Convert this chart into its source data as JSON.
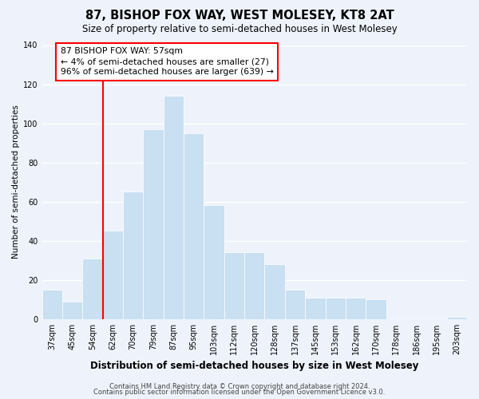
{
  "title": "87, BISHOP FOX WAY, WEST MOLESEY, KT8 2AT",
  "subtitle": "Size of property relative to semi-detached houses in West Molesey",
  "xlabel": "Distribution of semi-detached houses by size in West Molesey",
  "ylabel": "Number of semi-detached properties",
  "categories": [
    "37sqm",
    "45sqm",
    "54sqm",
    "62sqm",
    "70sqm",
    "79sqm",
    "87sqm",
    "95sqm",
    "103sqm",
    "112sqm",
    "120sqm",
    "128sqm",
    "137sqm",
    "145sqm",
    "153sqm",
    "162sqm",
    "170sqm",
    "178sqm",
    "186sqm",
    "195sqm",
    "203sqm"
  ],
  "values": [
    15,
    9,
    31,
    45,
    65,
    97,
    114,
    95,
    58,
    34,
    34,
    28,
    15,
    11,
    11,
    11,
    10,
    0,
    0,
    0,
    1
  ],
  "bar_color": "#c9dff2",
  "bar_edge_color": "#c9dff2",
  "annotation_text_line1": "87 BISHOP FOX WAY: 57sqm",
  "annotation_text_line2": "← 4% of semi-detached houses are smaller (27)",
  "annotation_text_line3": "96% of semi-detached houses are larger (639) →",
  "red_line_x": 2.5,
  "ylim": [
    0,
    140
  ],
  "yticks": [
    0,
    20,
    40,
    60,
    80,
    100,
    120,
    140
  ],
  "footer_line1": "Contains HM Land Registry data © Crown copyright and database right 2024.",
  "footer_line2": "Contains public sector information licensed under the Open Government Licence v3.0.",
  "bg_color": "#eef3fb",
  "plot_bg_color": "#eef3fb",
  "grid_color": "#ffffff",
  "title_fontsize": 10.5,
  "subtitle_fontsize": 8.5,
  "xlabel_fontsize": 8.5,
  "ylabel_fontsize": 7.5,
  "tick_fontsize": 7,
  "footer_fontsize": 6,
  "annotation_fontsize": 7.8
}
